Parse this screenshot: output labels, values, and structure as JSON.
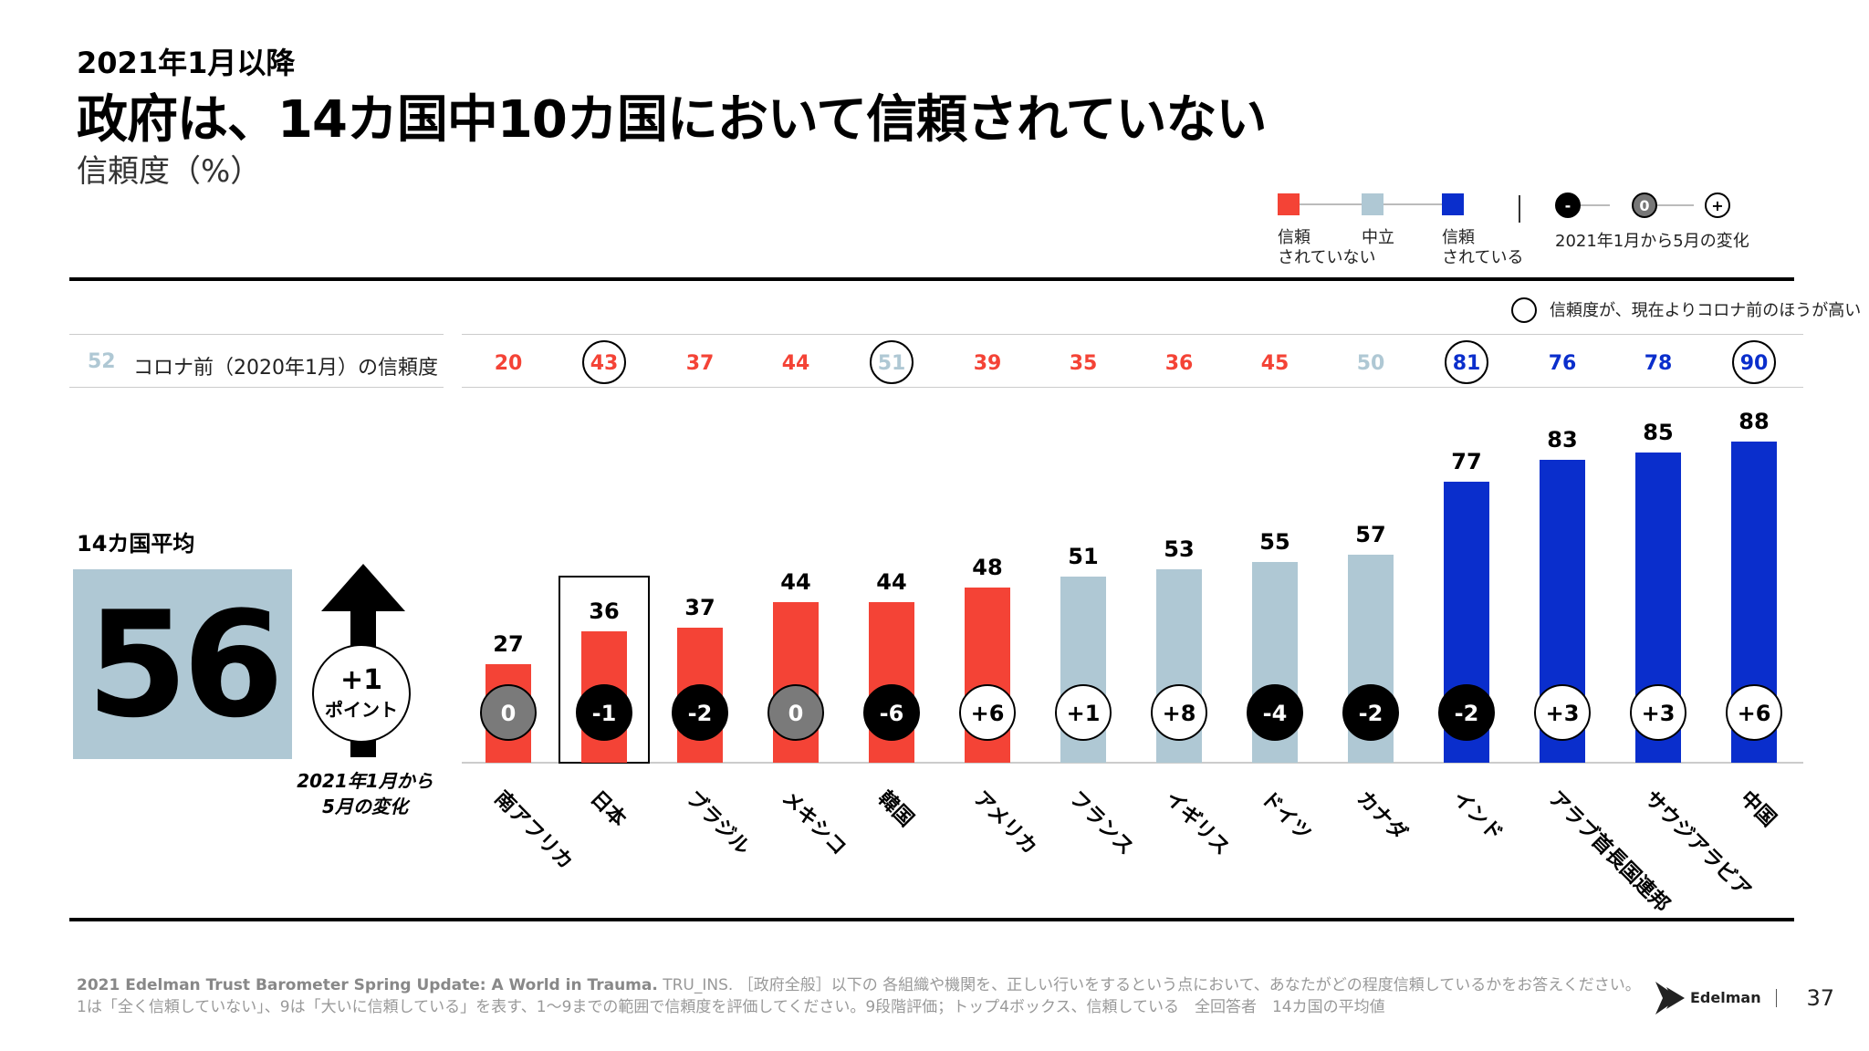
{
  "header": {
    "subtitle": "2021年1月以降",
    "title": "政府は、14カ国中10カ国において信頼されていない",
    "unit": "信頼度（%）"
  },
  "legend": {
    "distrust": "信頼\nされていない",
    "neutral": "中立",
    "trust": "信頼\nされている",
    "change_minus": "-",
    "change_zero": "0",
    "change_plus": "+",
    "change_label": "2021年1月から5月の変化",
    "circle_note": "信頼度が、現在よりコロナ前のほうが高い",
    "colors": {
      "distrust": "#f44336",
      "neutral": "#afc8d4",
      "trust": "#0a2ecc"
    }
  },
  "precovid": {
    "avg_value": "52",
    "label": "コロナ前（2020年1月）の信頼度"
  },
  "average": {
    "label": "14カ国平均",
    "value": "56",
    "change": "+1",
    "change_unit": "ポイント",
    "change_note_1": "2021年1月から",
    "change_note_2": "5月の変化"
  },
  "chart_data": {
    "type": "bar",
    "title": "政府は、14カ国中10カ国において信頼されていない",
    "ylabel": "信頼度（%）",
    "ylim": [
      0,
      100
    ],
    "categories": [
      "南アフリカ",
      "日本",
      "ブラジル",
      "メキシコ",
      "韓国",
      "アメリカ",
      "フランス",
      "イギリス",
      "ドイツ",
      "カナダ",
      "インド",
      "アラブ首長国連邦",
      "サウジアラビア",
      "中国"
    ],
    "values": [
      27,
      36,
      37,
      44,
      44,
      48,
      51,
      53,
      55,
      57,
      77,
      83,
      85,
      88
    ],
    "levels": [
      "distrust",
      "distrust",
      "distrust",
      "distrust",
      "distrust",
      "distrust",
      "neutral",
      "neutral",
      "neutral",
      "neutral",
      "trust",
      "trust",
      "trust",
      "trust"
    ],
    "changes": [
      "0",
      "-1",
      "-2",
      "0",
      "-6",
      "+6",
      "+1",
      "+8",
      "-4",
      "-2",
      "-2",
      "+3",
      "+3",
      "+6"
    ],
    "change_style": [
      "zero",
      "neg",
      "neg",
      "zero",
      "neg",
      "pos",
      "pos",
      "pos",
      "neg",
      "neg",
      "neg",
      "pos",
      "pos",
      "pos"
    ],
    "precovid_values": [
      20,
      43,
      37,
      44,
      51,
      39,
      35,
      36,
      45,
      50,
      81,
      76,
      78,
      90
    ],
    "precovid_levels": [
      "distrust",
      "distrust",
      "distrust",
      "distrust",
      "neutral",
      "distrust",
      "distrust",
      "distrust",
      "distrust",
      "neutral",
      "trust",
      "trust",
      "trust",
      "trust"
    ],
    "precovid_circled": [
      false,
      true,
      false,
      false,
      true,
      false,
      false,
      false,
      false,
      false,
      true,
      false,
      false,
      true
    ],
    "highlighted_category": "日本"
  },
  "footer": {
    "source_bold": "2021 Edelman Trust Barometer Spring Update: A World in Trauma.",
    "line1": " TRU_INS. ［政府全般］以下の 各組織や機関を、正しい行いをするという点において、あなたがどの程度信頼しているかをお答えください。",
    "line2": "1は「全く信頼していない」、9は「大いに信頼している」を表す、1～9までの範囲で信頼度を評価してください。9段階評価；トップ4ボックス、信頼している　全回答者　14カ国の平均値",
    "brand": "Edelman",
    "page": "37"
  }
}
